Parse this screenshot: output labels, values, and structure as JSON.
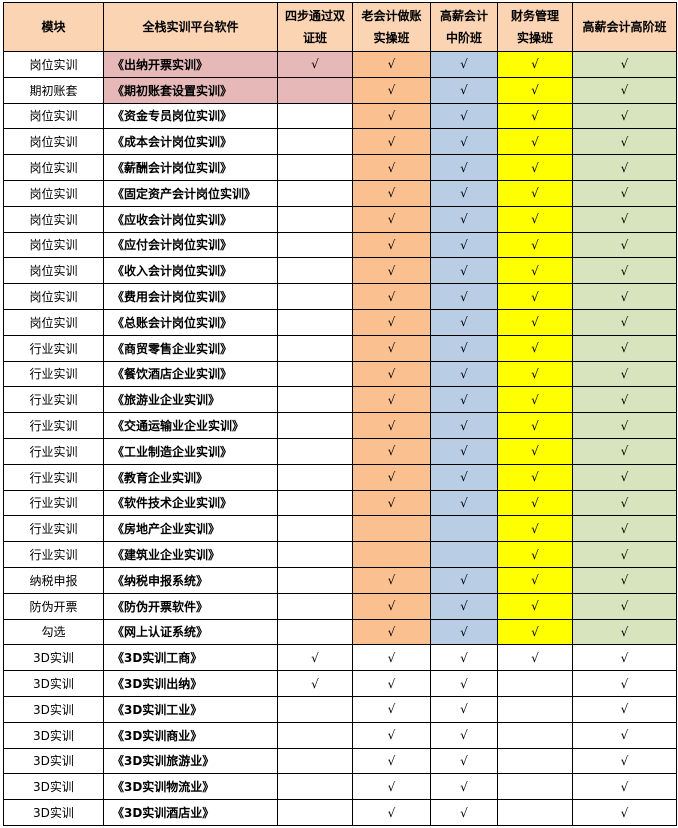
{
  "headers": [
    "模块",
    "全栈实训平台软件",
    "四步通过双证班",
    "老会计做账实操班",
    "高薪会计中阶班",
    "财务管理实操班",
    "高薪会计高阶班"
  ],
  "check_mark": "√",
  "colors": {
    "header": "#FBD4B4",
    "highlight_pink": "#E6B9B8",
    "col_old_accountant": "#FAC090",
    "col_mid": "#B9CDE5",
    "col_finance_mgmt": "#FFFF00",
    "col_advanced": "#D7E4BD"
  },
  "rows": [
    {
      "module": "岗位实训",
      "software": "《出纳开票实训》",
      "checks": [
        1,
        1,
        1,
        1,
        1
      ],
      "highlight": true,
      "colored": true
    },
    {
      "module": "期初账套",
      "software": "《期初账套设置实训》",
      "checks": [
        0,
        1,
        1,
        1,
        1
      ],
      "highlight": true,
      "colored": true
    },
    {
      "module": "岗位实训",
      "software": "《资金专员岗位实训》",
      "checks": [
        0,
        1,
        1,
        1,
        1
      ],
      "colored": true
    },
    {
      "module": "岗位实训",
      "software": "《成本会计岗位实训》",
      "checks": [
        0,
        1,
        1,
        1,
        1
      ],
      "colored": true
    },
    {
      "module": "岗位实训",
      "software": "《薪酬会计岗位实训》",
      "checks": [
        0,
        1,
        1,
        1,
        1
      ],
      "colored": true
    },
    {
      "module": "岗位实训",
      "software": "《固定资产会计岗位实训》",
      "checks": [
        0,
        1,
        1,
        1,
        1
      ],
      "colored": true
    },
    {
      "module": "岗位实训",
      "software": "《应收会计岗位实训》",
      "checks": [
        0,
        1,
        1,
        1,
        1
      ],
      "colored": true
    },
    {
      "module": "岗位实训",
      "software": "《应付会计岗位实训》",
      "checks": [
        0,
        1,
        1,
        1,
        1
      ],
      "colored": true
    },
    {
      "module": "岗位实训",
      "software": "《收入会计岗位实训》",
      "checks": [
        0,
        1,
        1,
        1,
        1
      ],
      "colored": true
    },
    {
      "module": "岗位实训",
      "software": "《费用会计岗位实训》",
      "checks": [
        0,
        1,
        1,
        1,
        1
      ],
      "colored": true
    },
    {
      "module": "岗位实训",
      "software": "《总账会计岗位实训》",
      "checks": [
        0,
        1,
        1,
        1,
        1
      ],
      "colored": true
    },
    {
      "module": "行业实训",
      "software": "《商贸零售企业实训》",
      "checks": [
        0,
        1,
        1,
        1,
        1
      ],
      "colored": true
    },
    {
      "module": "行业实训",
      "software": "《餐饮酒店企业实训》",
      "checks": [
        0,
        1,
        1,
        1,
        1
      ],
      "colored": true
    },
    {
      "module": "行业实训",
      "software": "《旅游业企业实训》",
      "checks": [
        0,
        1,
        1,
        1,
        1
      ],
      "colored": true
    },
    {
      "module": "行业实训",
      "software": "《交通运输业企业实训》",
      "checks": [
        0,
        1,
        1,
        1,
        1
      ],
      "colored": true
    },
    {
      "module": "行业实训",
      "software": "《工业制造企业实训》",
      "checks": [
        0,
        1,
        1,
        1,
        1
      ],
      "colored": true
    },
    {
      "module": "行业实训",
      "software": "《教育企业实训》",
      "checks": [
        0,
        1,
        1,
        1,
        1
      ],
      "colored": true
    },
    {
      "module": "行业实训",
      "software": "《软件技术企业实训》",
      "checks": [
        0,
        1,
        1,
        1,
        1
      ],
      "colored": true
    },
    {
      "module": "行业实训",
      "software": "《房地产企业实训》",
      "checks": [
        0,
        0,
        0,
        1,
        1
      ],
      "colored": true
    },
    {
      "module": "行业实训",
      "software": "《建筑业企业实训》",
      "checks": [
        0,
        0,
        0,
        1,
        1
      ],
      "colored": true
    },
    {
      "module": "纳税申报",
      "software": "《纳税申报系统》",
      "checks": [
        0,
        1,
        1,
        1,
        1
      ],
      "colored": true
    },
    {
      "module": "防伪开票",
      "software": "《防伪开票软件》",
      "checks": [
        0,
        1,
        1,
        1,
        1
      ],
      "colored": true
    },
    {
      "module": "勾选",
      "software": "《网上认证系统》",
      "checks": [
        0,
        1,
        1,
        1,
        1
      ],
      "colored": true
    },
    {
      "module": "3D实训",
      "software": "《3D实训工商》",
      "checks": [
        1,
        1,
        1,
        1,
        1
      ]
    },
    {
      "module": "3D实训",
      "software": "《3D实训出纳》",
      "checks": [
        1,
        1,
        1,
        0,
        1
      ]
    },
    {
      "module": "3D实训",
      "software": "《3D实训工业》",
      "checks": [
        0,
        1,
        1,
        0,
        1
      ]
    },
    {
      "module": "3D实训",
      "software": "《3D实训商业》",
      "checks": [
        0,
        1,
        1,
        0,
        1
      ]
    },
    {
      "module": "3D实训",
      "software": "《3D实训旅游业》",
      "checks": [
        0,
        1,
        1,
        0,
        1
      ]
    },
    {
      "module": "3D实训",
      "software": "《3D实训物流业》",
      "checks": [
        0,
        1,
        1,
        0,
        1
      ]
    },
    {
      "module": "3D实训",
      "software": "《3D实训酒店业》",
      "checks": [
        0,
        1,
        1,
        0,
        1
      ]
    }
  ]
}
